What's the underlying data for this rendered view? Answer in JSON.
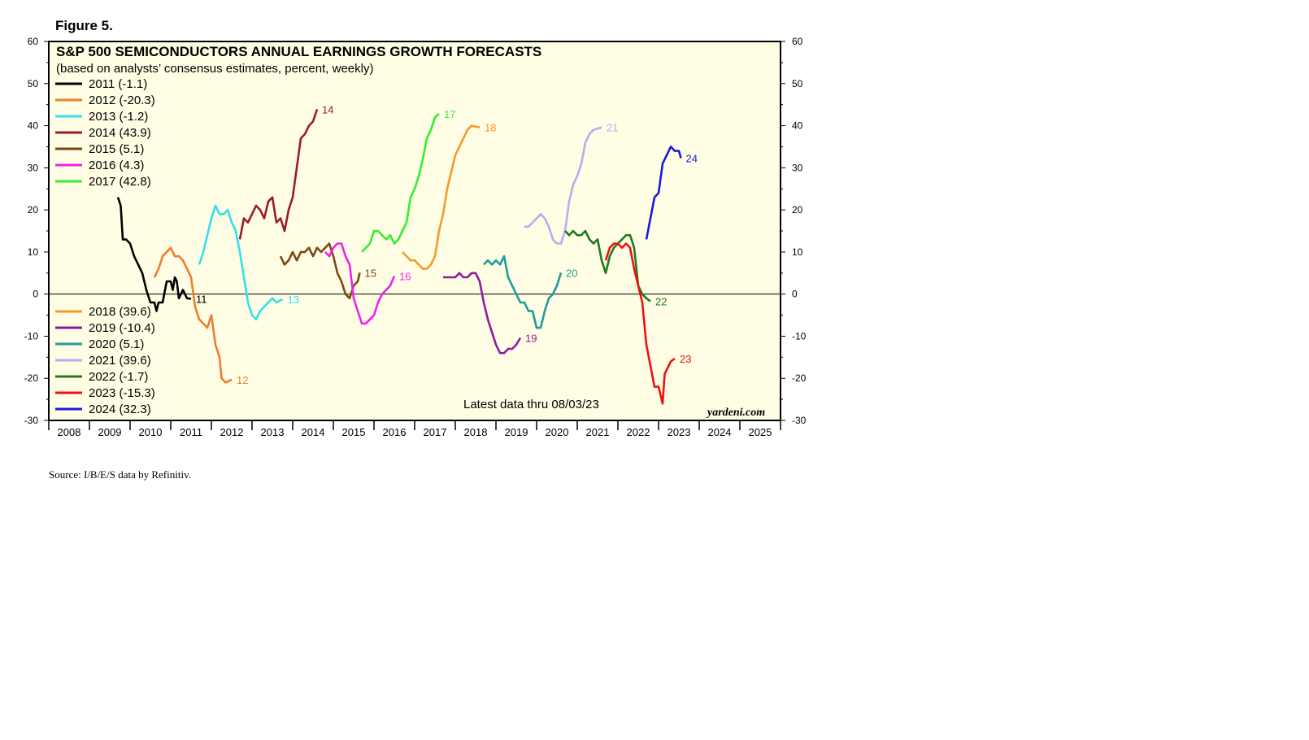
{
  "figure_label": "Figure 5.",
  "source": "Source: I/B/E/S data by Refinitiv.",
  "chart_data": {
    "type": "line",
    "title": "S&P 500 SEMICONDUCTORS ANNUAL EARNINGS GROWTH FORECASTS",
    "subtitle": "(based on analysts’ consensus estimates, percent, weekly)",
    "xlabel": "",
    "ylabel": "",
    "ylim": [
      -30,
      60
    ],
    "yticks": [
      -30,
      -20,
      -10,
      0,
      10,
      20,
      30,
      40,
      50,
      60
    ],
    "xlim": [
      2008,
      2026
    ],
    "year_labels": [
      "2008",
      "2009",
      "2010",
      "2011",
      "2012",
      "2013",
      "2014",
      "2015",
      "2016",
      "2017",
      "2018",
      "2019",
      "2020",
      "2021",
      "2022",
      "2023",
      "2024",
      "2025"
    ],
    "note": "Latest data thru 08/03/23",
    "credit": "yardeni.com",
    "grid": false,
    "zero_line": true,
    "legend_groups": [
      [
        "2011 (-1.1)",
        "2012 (-20.3)",
        "2013 (-1.2)",
        "2014 (43.9)",
        "2015 (5.1)",
        "2016 (4.3)",
        "2017 (42.8)"
      ],
      [
        "2018 (39.6)",
        "2019 (-10.4)",
        "2020 (5.1)",
        "2021 (39.6)",
        "2022 (-1.7)",
        "2023 (-15.3)",
        "2024 (32.3)"
      ]
    ],
    "series": [
      {
        "name": "2011",
        "color": "#000000",
        "end_label": "11",
        "points": [
          [
            2009.7,
            23
          ],
          [
            2009.77,
            21
          ],
          [
            2009.82,
            13
          ],
          [
            2009.9,
            13
          ],
          [
            2010.0,
            12
          ],
          [
            2010.1,
            9
          ],
          [
            2010.2,
            7
          ],
          [
            2010.3,
            5
          ],
          [
            2010.4,
            1
          ],
          [
            2010.5,
            -2
          ],
          [
            2010.6,
            -2
          ],
          [
            2010.65,
            -4
          ],
          [
            2010.7,
            -2
          ],
          [
            2010.8,
            -2
          ],
          [
            2010.9,
            3
          ],
          [
            2011.0,
            3
          ],
          [
            2011.05,
            1
          ],
          [
            2011.1,
            4
          ],
          [
            2011.15,
            3
          ],
          [
            2011.2,
            -1
          ],
          [
            2011.3,
            1
          ],
          [
            2011.4,
            -1
          ],
          [
            2011.5,
            -1.1
          ]
        ]
      },
      {
        "name": "2012",
        "color": "#ed7d31",
        "end_label": "12",
        "points": [
          [
            2010.6,
            4
          ],
          [
            2010.7,
            6
          ],
          [
            2010.8,
            9
          ],
          [
            2010.9,
            10
          ],
          [
            2011.0,
            11
          ],
          [
            2011.1,
            9
          ],
          [
            2011.2,
            9
          ],
          [
            2011.3,
            8
          ],
          [
            2011.4,
            6
          ],
          [
            2011.5,
            4
          ],
          [
            2011.6,
            -3
          ],
          [
            2011.7,
            -6
          ],
          [
            2011.8,
            -7
          ],
          [
            2011.9,
            -8
          ],
          [
            2012.0,
            -5
          ],
          [
            2012.1,
            -12
          ],
          [
            2012.2,
            -15
          ],
          [
            2012.25,
            -20
          ],
          [
            2012.35,
            -21
          ],
          [
            2012.5,
            -20.3
          ]
        ]
      },
      {
        "name": "2013",
        "color": "#33e0ec",
        "end_label": "13",
        "points": [
          [
            2011.7,
            7
          ],
          [
            2011.8,
            10
          ],
          [
            2011.9,
            14
          ],
          [
            2012.0,
            18
          ],
          [
            2012.1,
            21
          ],
          [
            2012.2,
            19
          ],
          [
            2012.3,
            19
          ],
          [
            2012.4,
            20
          ],
          [
            2012.5,
            17
          ],
          [
            2012.6,
            15
          ],
          [
            2012.7,
            10
          ],
          [
            2012.8,
            4
          ],
          [
            2012.9,
            -2
          ],
          [
            2013.0,
            -5
          ],
          [
            2013.1,
            -6
          ],
          [
            2013.2,
            -4
          ],
          [
            2013.3,
            -3
          ],
          [
            2013.4,
            -2
          ],
          [
            2013.5,
            -1
          ],
          [
            2013.6,
            -2
          ],
          [
            2013.75,
            -1.2
          ]
        ]
      },
      {
        "name": "2014",
        "color": "#9b1c24",
        "end_label": "14",
        "points": [
          [
            2012.7,
            13
          ],
          [
            2012.8,
            18
          ],
          [
            2012.9,
            17
          ],
          [
            2013.0,
            19
          ],
          [
            2013.1,
            21
          ],
          [
            2013.2,
            20
          ],
          [
            2013.3,
            18
          ],
          [
            2013.4,
            22
          ],
          [
            2013.5,
            23
          ],
          [
            2013.6,
            17
          ],
          [
            2013.7,
            18
          ],
          [
            2013.8,
            15
          ],
          [
            2013.9,
            20
          ],
          [
            2014.0,
            23
          ],
          [
            2014.1,
            30
          ],
          [
            2014.2,
            37
          ],
          [
            2014.3,
            38
          ],
          [
            2014.4,
            40
          ],
          [
            2014.5,
            41
          ],
          [
            2014.6,
            43.9
          ]
        ]
      },
      {
        "name": "2015",
        "color": "#7a4a14",
        "end_label": "15",
        "points": [
          [
            2013.7,
            9
          ],
          [
            2013.8,
            7
          ],
          [
            2013.9,
            8
          ],
          [
            2014.0,
            10
          ],
          [
            2014.1,
            8
          ],
          [
            2014.2,
            10
          ],
          [
            2014.3,
            10
          ],
          [
            2014.4,
            11
          ],
          [
            2014.5,
            9
          ],
          [
            2014.6,
            11
          ],
          [
            2014.7,
            10
          ],
          [
            2014.8,
            11
          ],
          [
            2014.9,
            12
          ],
          [
            2015.0,
            9
          ],
          [
            2015.1,
            5
          ],
          [
            2015.2,
            3
          ],
          [
            2015.3,
            0
          ],
          [
            2015.4,
            -1
          ],
          [
            2015.5,
            2
          ],
          [
            2015.6,
            3
          ],
          [
            2015.65,
            5.1
          ]
        ]
      },
      {
        "name": "2016",
        "color": "#ee22ee",
        "end_label": "16",
        "points": [
          [
            2014.8,
            10
          ],
          [
            2014.9,
            9
          ],
          [
            2015.0,
            11
          ],
          [
            2015.1,
            12
          ],
          [
            2015.2,
            12
          ],
          [
            2015.3,
            9
          ],
          [
            2015.4,
            7
          ],
          [
            2015.5,
            -1
          ],
          [
            2015.6,
            -4
          ],
          [
            2015.7,
            -7
          ],
          [
            2015.8,
            -7
          ],
          [
            2015.9,
            -6
          ],
          [
            2016.0,
            -5
          ],
          [
            2016.1,
            -2
          ],
          [
            2016.2,
            0
          ],
          [
            2016.3,
            1
          ],
          [
            2016.4,
            2
          ],
          [
            2016.5,
            4.3
          ]
        ]
      },
      {
        "name": "2017",
        "color": "#33ee33",
        "end_label": "17",
        "points": [
          [
            2015.7,
            10
          ],
          [
            2015.8,
            11
          ],
          [
            2015.9,
            12
          ],
          [
            2016.0,
            15
          ],
          [
            2016.1,
            15
          ],
          [
            2016.2,
            14
          ],
          [
            2016.3,
            13
          ],
          [
            2016.4,
            14
          ],
          [
            2016.5,
            12
          ],
          [
            2016.6,
            13
          ],
          [
            2016.7,
            15
          ],
          [
            2016.8,
            17
          ],
          [
            2016.9,
            23
          ],
          [
            2017.0,
            25
          ],
          [
            2017.1,
            28
          ],
          [
            2017.2,
            32
          ],
          [
            2017.3,
            37
          ],
          [
            2017.4,
            39
          ],
          [
            2017.5,
            42
          ],
          [
            2017.6,
            42.8
          ]
        ]
      },
      {
        "name": "2018",
        "color": "#f59a2a",
        "end_label": "18",
        "points": [
          [
            2016.7,
            10
          ],
          [
            2016.8,
            9
          ],
          [
            2016.9,
            8
          ],
          [
            2017.0,
            8
          ],
          [
            2017.1,
            7
          ],
          [
            2017.2,
            6
          ],
          [
            2017.3,
            6
          ],
          [
            2017.4,
            7
          ],
          [
            2017.5,
            9
          ],
          [
            2017.6,
            15
          ],
          [
            2017.7,
            19
          ],
          [
            2017.8,
            25
          ],
          [
            2017.9,
            29
          ],
          [
            2018.0,
            33
          ],
          [
            2018.1,
            35
          ],
          [
            2018.2,
            37
          ],
          [
            2018.3,
            39
          ],
          [
            2018.4,
            40
          ],
          [
            2018.6,
            39.6
          ]
        ]
      },
      {
        "name": "2019",
        "color": "#8a1e9e",
        "end_label": "19",
        "points": [
          [
            2017.7,
            4
          ],
          [
            2017.8,
            4
          ],
          [
            2017.9,
            4
          ],
          [
            2018.0,
            4
          ],
          [
            2018.1,
            5
          ],
          [
            2018.2,
            4
          ],
          [
            2018.3,
            4
          ],
          [
            2018.4,
            5
          ],
          [
            2018.5,
            5
          ],
          [
            2018.6,
            3
          ],
          [
            2018.7,
            -2
          ],
          [
            2018.8,
            -6
          ],
          [
            2018.9,
            -9
          ],
          [
            2019.0,
            -12
          ],
          [
            2019.1,
            -14
          ],
          [
            2019.2,
            -14
          ],
          [
            2019.3,
            -13
          ],
          [
            2019.4,
            -13
          ],
          [
            2019.5,
            -12
          ],
          [
            2019.6,
            -10.4
          ]
        ]
      },
      {
        "name": "2020",
        "color": "#1f9c9c",
        "end_label": "20",
        "points": [
          [
            2018.7,
            7
          ],
          [
            2018.8,
            8
          ],
          [
            2018.9,
            7
          ],
          [
            2019.0,
            8
          ],
          [
            2019.1,
            7
          ],
          [
            2019.2,
            9
          ],
          [
            2019.3,
            4
          ],
          [
            2019.4,
            2
          ],
          [
            2019.5,
            0
          ],
          [
            2019.6,
            -2
          ],
          [
            2019.7,
            -2
          ],
          [
            2019.8,
            -4
          ],
          [
            2019.9,
            -4
          ],
          [
            2020.0,
            -8
          ],
          [
            2020.1,
            -8
          ],
          [
            2020.2,
            -4
          ],
          [
            2020.3,
            -1
          ],
          [
            2020.4,
            0
          ],
          [
            2020.5,
            2
          ],
          [
            2020.6,
            5.1
          ]
        ]
      },
      {
        "name": "2021",
        "color": "#b0b0ee",
        "end_label": "21",
        "points": [
          [
            2019.7,
            16
          ],
          [
            2019.8,
            16
          ],
          [
            2019.9,
            17
          ],
          [
            2020.0,
            18
          ],
          [
            2020.1,
            19
          ],
          [
            2020.2,
            18
          ],
          [
            2020.3,
            16
          ],
          [
            2020.4,
            13
          ],
          [
            2020.5,
            12
          ],
          [
            2020.6,
            12
          ],
          [
            2020.7,
            15
          ],
          [
            2020.8,
            22
          ],
          [
            2020.9,
            26
          ],
          [
            2021.0,
            28
          ],
          [
            2021.1,
            31
          ],
          [
            2021.2,
            36
          ],
          [
            2021.3,
            38
          ],
          [
            2021.4,
            39
          ],
          [
            2021.6,
            39.6
          ]
        ]
      },
      {
        "name": "2022",
        "color": "#1f7a1f",
        "end_label": "22",
        "points": [
          [
            2020.7,
            15
          ],
          [
            2020.8,
            14
          ],
          [
            2020.9,
            15
          ],
          [
            2021.0,
            14
          ],
          [
            2021.1,
            14
          ],
          [
            2021.2,
            15
          ],
          [
            2021.3,
            13
          ],
          [
            2021.4,
            12
          ],
          [
            2021.5,
            13
          ],
          [
            2021.6,
            8
          ],
          [
            2021.7,
            5
          ],
          [
            2021.8,
            9
          ],
          [
            2021.9,
            11
          ],
          [
            2022.0,
            12
          ],
          [
            2022.1,
            13
          ],
          [
            2022.2,
            14
          ],
          [
            2022.3,
            14
          ],
          [
            2022.4,
            11
          ],
          [
            2022.5,
            2
          ],
          [
            2022.6,
            0
          ],
          [
            2022.7,
            -1
          ],
          [
            2022.8,
            -1.7
          ]
        ]
      },
      {
        "name": "2023",
        "color": "#ee1111",
        "end_label": "23",
        "points": [
          [
            2021.7,
            8
          ],
          [
            2021.8,
            11
          ],
          [
            2021.9,
            12
          ],
          [
            2022.0,
            12
          ],
          [
            2022.1,
            11
          ],
          [
            2022.2,
            12
          ],
          [
            2022.3,
            11
          ],
          [
            2022.4,
            6
          ],
          [
            2022.5,
            2
          ],
          [
            2022.6,
            -2
          ],
          [
            2022.7,
            -12
          ],
          [
            2022.8,
            -17
          ],
          [
            2022.9,
            -22
          ],
          [
            2023.0,
            -22
          ],
          [
            2023.1,
            -26
          ],
          [
            2023.15,
            -19
          ],
          [
            2023.3,
            -16
          ],
          [
            2023.4,
            -15.3
          ]
        ]
      },
      {
        "name": "2024",
        "color": "#1a1adb",
        "end_label": "24",
        "points": [
          [
            2022.7,
            13
          ],
          [
            2022.8,
            18
          ],
          [
            2022.9,
            23
          ],
          [
            2023.0,
            24
          ],
          [
            2023.1,
            31
          ],
          [
            2023.2,
            33
          ],
          [
            2023.3,
            35
          ],
          [
            2023.4,
            34
          ],
          [
            2023.5,
            34
          ],
          [
            2023.55,
            32.3
          ]
        ]
      }
    ]
  }
}
